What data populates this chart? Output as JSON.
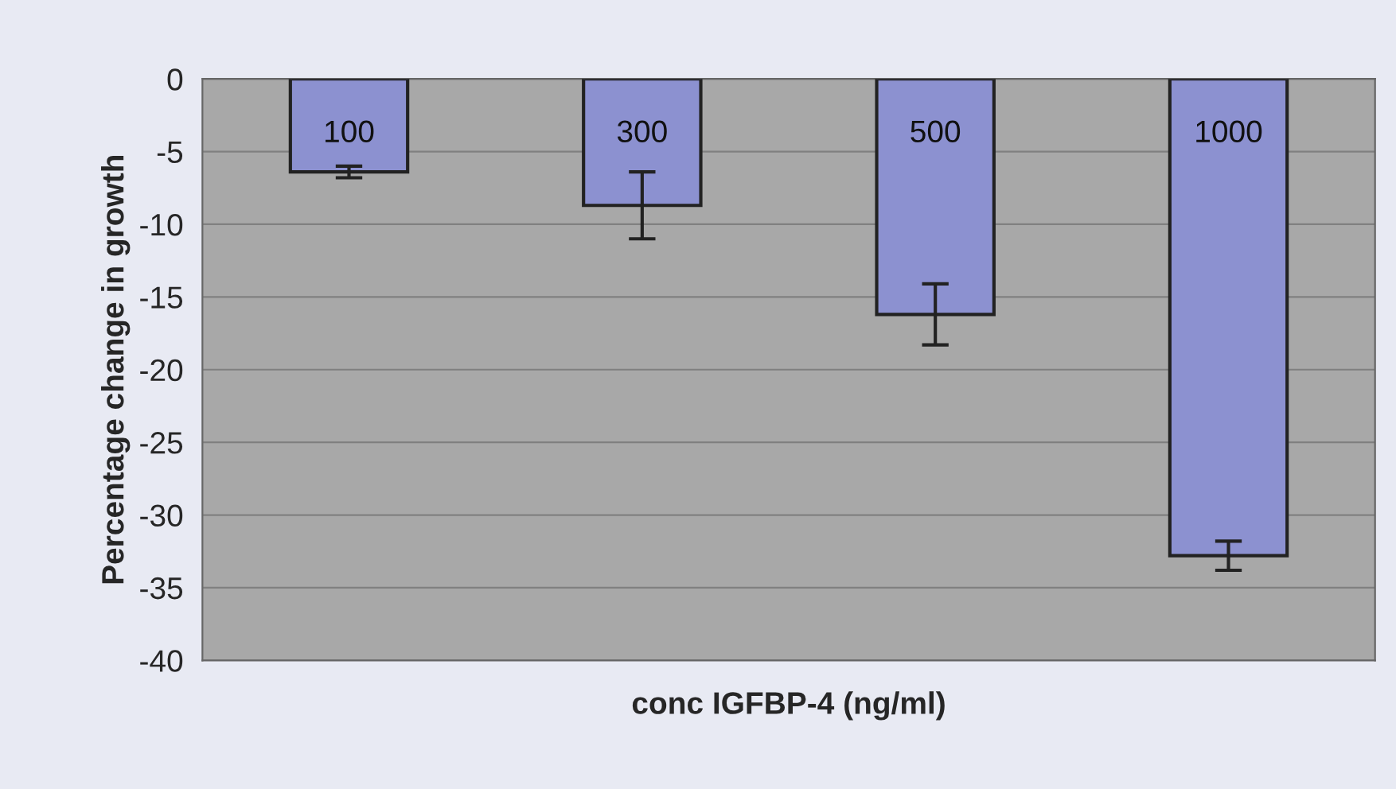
{
  "chart_data": {
    "type": "bar",
    "xlabel": "conc IGFBP-4 (ng/ml)",
    "ylabel": "Percentage change in growth",
    "categories": [
      "100",
      "300",
      "500",
      "1000"
    ],
    "values": [
      -6.4,
      -8.7,
      -16.2,
      -32.8
    ],
    "errors": [
      0.4,
      2.3,
      2.1,
      1.0
    ],
    "color": "#8c91d0",
    "ylim": [
      -40,
      0
    ],
    "yticks": [
      -40,
      -35,
      -30,
      -25,
      -20,
      -15,
      -10,
      -5,
      0
    ],
    "grid": "y",
    "legend": false
  }
}
